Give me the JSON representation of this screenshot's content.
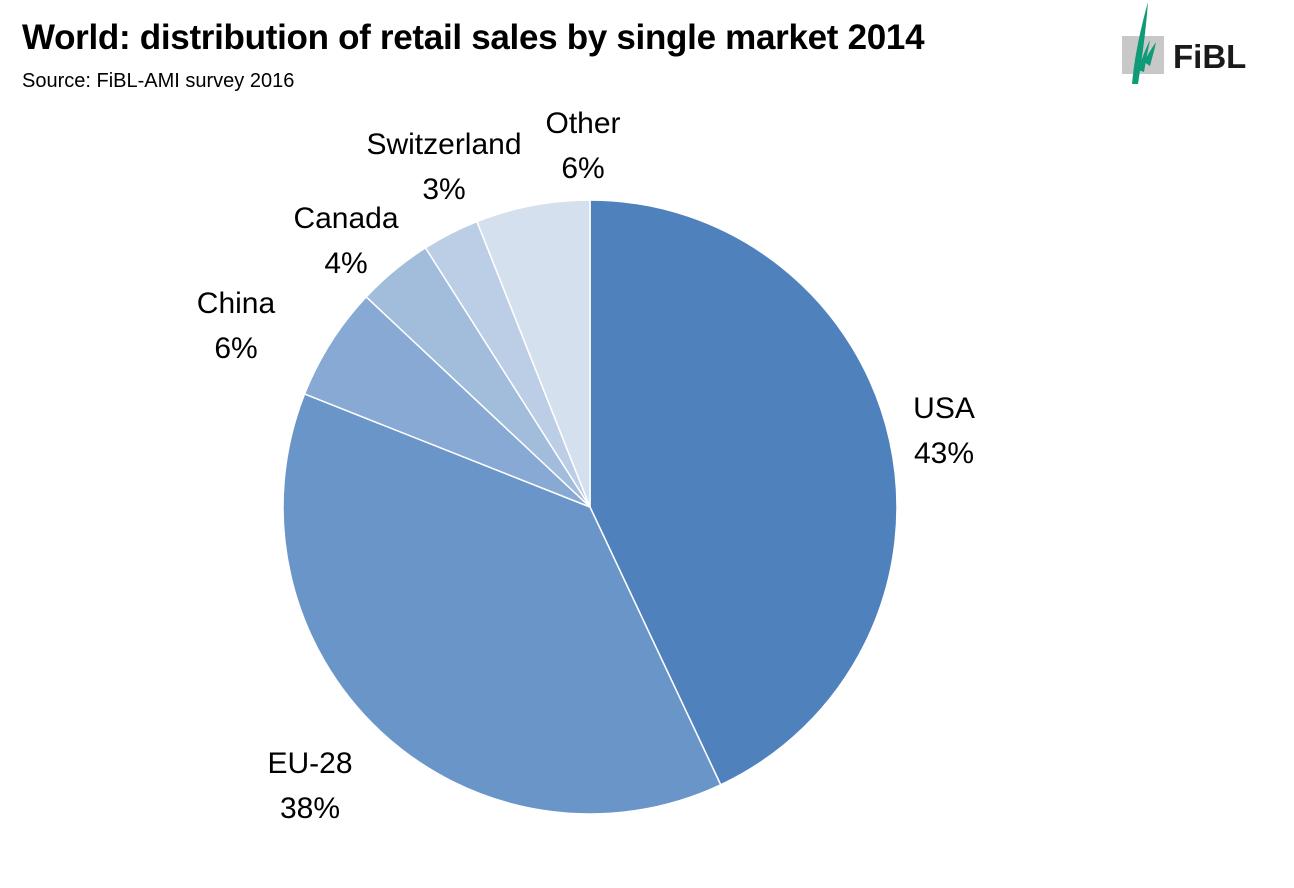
{
  "header": {
    "title": "World: distribution of retail sales by single market 2014",
    "subtitle": "Source: FiBL-AMI survey 2016"
  },
  "logo": {
    "text": "FiBL",
    "icon": "fibl-leaf-icon",
    "accent_color": "#0f9a78"
  },
  "chart_data": {
    "type": "pie",
    "start_angle": "12 o'clock",
    "direction": "clockwise",
    "slices": [
      {
        "name": "USA",
        "value": 43,
        "label": "43%",
        "color": "#4f81bd"
      },
      {
        "name": "EU-28",
        "value": 38,
        "label": "38%",
        "color": "#6a95c8"
      },
      {
        "name": "China",
        "value": 6,
        "label": "6%",
        "color": "#87a9d3"
      },
      {
        "name": "Canada",
        "value": 4,
        "label": "4%",
        "color": "#a2bcdc"
      },
      {
        "name": "Switzerland",
        "value": 3,
        "label": "3%",
        "color": "#bccee5"
      },
      {
        "name": "Other",
        "value": 6,
        "label": "6%",
        "color": "#d5e0ee"
      }
    ]
  }
}
